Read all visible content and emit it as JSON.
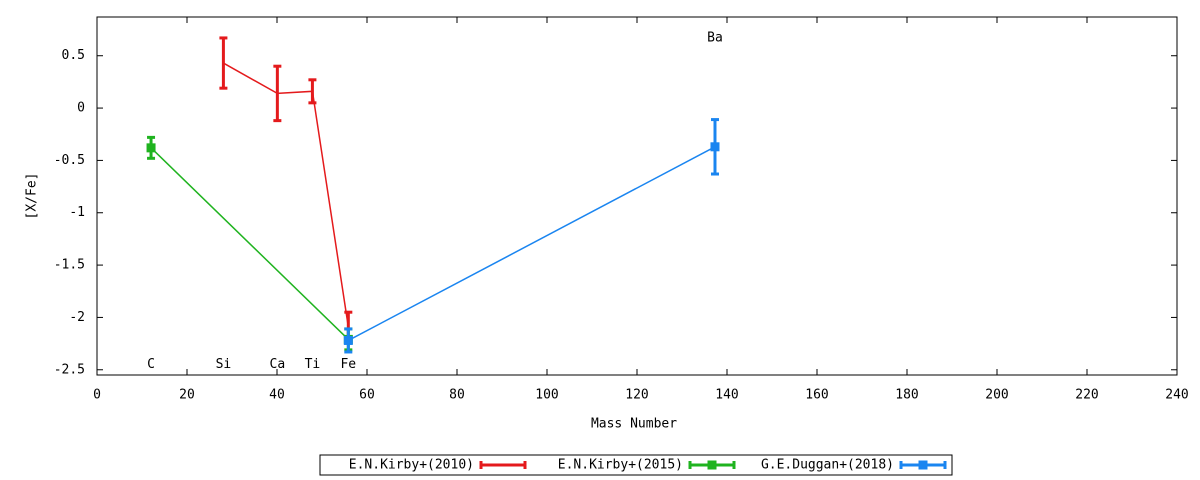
{
  "chart_data": {
    "type": "errorbar-line",
    "xlabel": "Mass Number",
    "ylabel": "[X/Fe]",
    "xlim": [
      0,
      240
    ],
    "xticks": [
      0,
      20,
      40,
      60,
      80,
      100,
      120,
      140,
      160,
      180,
      200,
      220,
      240
    ],
    "ylim": [
      -2.55,
      0.87
    ],
    "yticks": [
      -2.5,
      -2,
      -1.5,
      -1,
      -0.5,
      0,
      0.5
    ],
    "grid": false,
    "legend": "bottom",
    "annotations": [
      {
        "text": "C",
        "x": 12.01,
        "y": -2.45
      },
      {
        "text": "Si",
        "x": 28.09,
        "y": -2.45
      },
      {
        "text": "Ca",
        "x": 40.08,
        "y": -2.45
      },
      {
        "text": "Ti",
        "x": 47.87,
        "y": -2.45
      },
      {
        "text": "Fe",
        "x": 55.85,
        "y": -2.45
      },
      {
        "text": "Ba",
        "x": 137.33,
        "y": 0.67
      }
    ],
    "series": [
      {
        "name": "E.N.Kirby+(2010)",
        "color": "#e41a1c",
        "marker": "none",
        "x": [
          28.09,
          40.08,
          47.87,
          55.85
        ],
        "values": [
          0.43,
          0.14,
          0.16,
          -2.09
        ],
        "errors": [
          0.24,
          0.26,
          0.11,
          0.14
        ]
      },
      {
        "name": "E.N.Kirby+(2015)",
        "color": "#1fb31f",
        "marker": "square",
        "x": [
          12.01,
          55.85
        ],
        "values": [
          -0.38,
          -2.21
        ],
        "errors": [
          0.1,
          0.1
        ]
      },
      {
        "name": "G.E.Duggan+(2018)",
        "color": "#1a85f0",
        "marker": "square",
        "x": [
          55.85,
          137.33
        ],
        "values": [
          -2.22,
          -0.37
        ],
        "errors": [
          0.11,
          0.26
        ]
      }
    ]
  }
}
